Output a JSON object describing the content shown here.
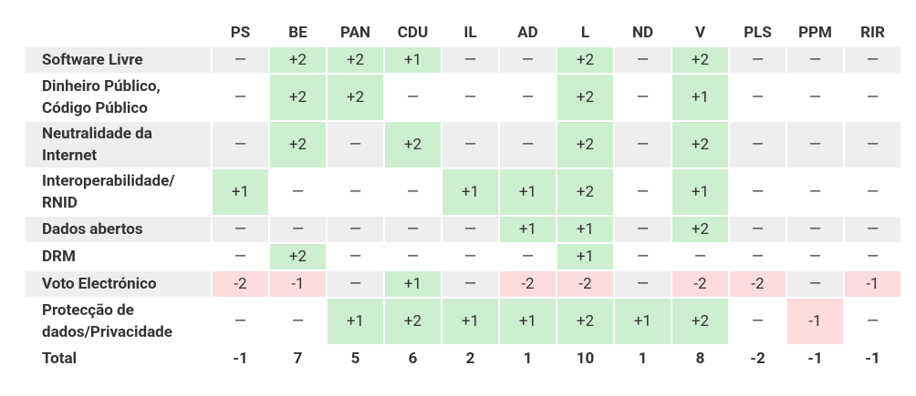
{
  "table": {
    "header": [
      "PS",
      "BE",
      "PAN",
      "CDU",
      "IL",
      "AD",
      "L",
      "ND",
      "V",
      "PLS",
      "PPM",
      "RIR"
    ],
    "rows": [
      {
        "label": "Software Livre",
        "cells": [
          "—",
          "+2",
          "+2",
          "+1",
          "—",
          "—",
          "+2",
          "—",
          "+2",
          "—",
          "—",
          "—"
        ]
      },
      {
        "label": "Dinheiro Público, Código Público",
        "cells": [
          "—",
          "+2",
          "+2",
          "—",
          "—",
          "—",
          "+2",
          "—",
          "+1",
          "—",
          "—",
          "—"
        ]
      },
      {
        "label": "Neutralidade da Internet",
        "cells": [
          "—",
          "+2",
          "—",
          "+2",
          "—",
          "—",
          "+2",
          "—",
          "+2",
          "—",
          "—",
          "—"
        ]
      },
      {
        "label": "Interoperabilidade/ RNID",
        "cells": [
          "+1",
          "—",
          "—",
          "—",
          "+1",
          "+1",
          "+2",
          "—",
          "+1",
          "—",
          "—",
          "—"
        ]
      },
      {
        "label": "Dados abertos",
        "cells": [
          "—",
          "—",
          "—",
          "—",
          "—",
          "+1",
          "+1",
          "—",
          "+2",
          "—",
          "—",
          "—"
        ]
      },
      {
        "label": "DRM",
        "cells": [
          "—",
          "+2",
          "—",
          "—",
          "—",
          "—",
          "+1",
          "—",
          "—",
          "—",
          "—",
          "—"
        ]
      },
      {
        "label": "Voto Electrónico",
        "cells": [
          "-2",
          "-1",
          "—",
          "+1",
          "—",
          "-2",
          "-2",
          "—",
          "-2",
          "-2",
          "—",
          "-1"
        ]
      },
      {
        "label": "Protecção de dados/Privacidade",
        "cells": [
          "—",
          "—",
          "+1",
          "+2",
          "+1",
          "+1",
          "+2",
          "+1",
          "+2",
          "—",
          "-1",
          "—"
        ]
      }
    ],
    "total": {
      "label": "Total",
      "cells": [
        "-1",
        "7",
        "5",
        "6",
        "2",
        "1",
        "10",
        "1",
        "8",
        "-2",
        "-1",
        "-1"
      ]
    }
  }
}
